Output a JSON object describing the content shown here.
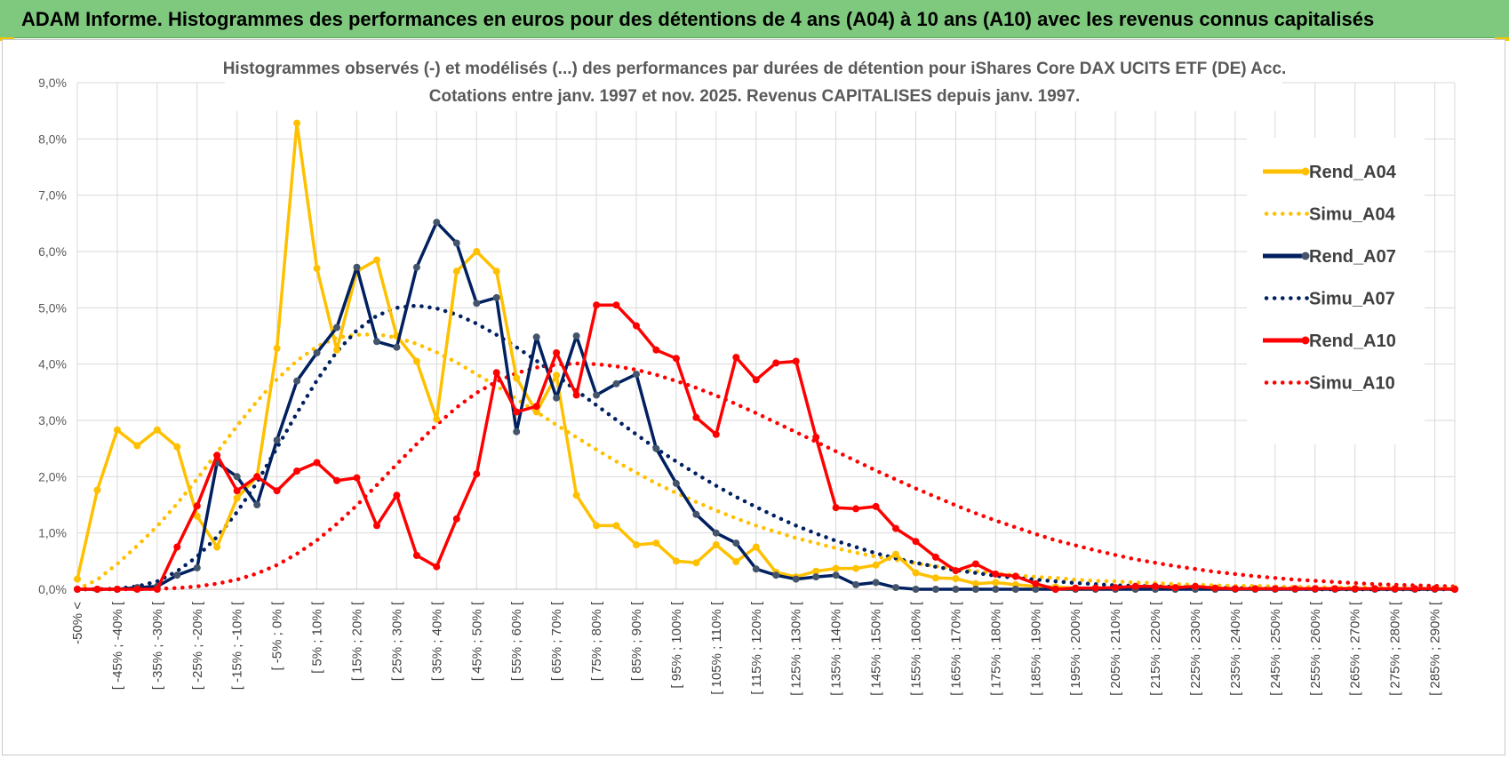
{
  "header": {
    "title": "ADAM Informe. Histogrammes des performances en euros pour des détentions de 4 ans (A04) à 10 ans (A10) avec les revenus connus capitalisés"
  },
  "colors": {
    "header_bg": "#7fc97f",
    "a04": "#ffc000",
    "a07": "#002060",
    "a10": "#ff0000"
  },
  "chart_data": {
    "type": "line",
    "title": "Histogrammes observés (-) et modélisés (...) des performances par durées de détention pour iShares Core DAX UCITS ETF (DE) Acc.",
    "subtitle": "Cotations entre janv. 1997 et nov. 2025. Revenus CAPITALISES depuis janv. 1997.",
    "ylim": [
      0,
      9
    ],
    "yticks": [
      "0,0%",
      "1,0%",
      "2,0%",
      "3,0%",
      "4,0%",
      "5,0%",
      "6,0%",
      "7,0%",
      "8,0%",
      "9,0%"
    ],
    "xlabels": [
      "-50% <",
      "[ -45% ; -40% [",
      "[ -35% ; -30% [",
      "[ -25% ; -20% [",
      "[ -15% ; -10% [",
      "[ -5% ; 0% [",
      "[ 5% ; 10% [",
      "[ 15% ; 20% [",
      "[ 25% ; 30% [",
      "[ 35% ; 40% [",
      "[ 45% ; 50% [",
      "[ 55% ; 60% [",
      "[ 65% ; 70% [",
      "[ 75% ; 80% [",
      "[ 85% ; 90% [",
      "[ 95% ; 100% [",
      "[ 105% ; 110% [",
      "[ 115% ; 120% [",
      "[ 125% ; 130% [",
      "[ 135% ; 140% [",
      "[ 145% ; 150% [",
      "[ 155% ; 160% [",
      "[ 165% ; 170% [",
      "[ 175% ; 180% [",
      "[ 185% ; 190% [",
      "[ 195% ; 200% [",
      "[ 205% ; 210% [",
      "[ 215% ; 220% [",
      "[ 225% ; 230% [",
      "[ 235% ; 240% [",
      "[ 245% ; 250% [",
      "[ 255% ; 260% [",
      "[ 265% ; 270% [",
      "[ 275% ; 280% [",
      "[ 285% ; 290% ["
    ],
    "n_points": 70,
    "legend_position": "right",
    "series": [
      {
        "name": "Rend_A04",
        "style": "solid",
        "color": "#ffc000",
        "values": [
          0.18,
          1.76,
          2.83,
          2.55,
          2.83,
          2.53,
          1.3,
          0.75,
          1.62,
          2.0,
          4.28,
          8.28,
          5.7,
          4.25,
          5.65,
          5.85,
          4.5,
          4.05,
          3.02,
          5.65,
          6.0,
          5.65,
          3.75,
          3.15,
          3.8,
          1.67,
          1.13,
          1.13,
          0.79,
          0.82,
          0.5,
          0.47,
          0.79,
          0.49,
          0.75,
          0.3,
          0.22,
          0.32,
          0.37,
          0.37,
          0.43,
          0.62,
          0.29,
          0.2,
          0.19,
          0.1,
          0.12,
          0.08,
          0.05,
          0.04,
          0.02,
          0.02,
          0.01,
          0.01,
          0.01,
          0.01,
          0.01,
          0.01,
          0.01,
          0.01,
          0.01,
          0.01,
          0.01,
          0.01,
          0.01,
          0.01,
          0.01,
          0.01,
          0.01,
          0.01
        ]
      },
      {
        "name": "Simu_A04",
        "style": "dotted",
        "color": "#ffc000",
        "values": [
          0.0,
          0.17,
          0.45,
          0.77,
          1.12,
          1.52,
          1.96,
          2.43,
          2.9,
          3.34,
          3.73,
          4.06,
          4.31,
          4.47,
          4.52,
          4.53,
          4.47,
          4.36,
          4.21,
          4.03,
          3.82,
          3.61,
          3.38,
          3.15,
          2.92,
          2.7,
          2.48,
          2.27,
          2.07,
          1.88,
          1.71,
          1.55,
          1.4,
          1.26,
          1.13,
          1.02,
          0.91,
          0.82,
          0.73,
          0.65,
          0.58,
          0.52,
          0.46,
          0.41,
          0.36,
          0.32,
          0.28,
          0.25,
          0.22,
          0.2,
          0.17,
          0.15,
          0.14,
          0.12,
          0.11,
          0.09,
          0.08,
          0.07,
          0.06,
          0.06,
          0.05,
          0.04,
          0.04,
          0.03,
          0.03,
          0.03,
          0.02,
          0.02,
          0.02,
          0.02
        ]
      },
      {
        "name": "Rend_A07",
        "style": "solid",
        "color": "#002060",
        "values": [
          0.0,
          0.0,
          0.0,
          0.03,
          0.05,
          0.25,
          0.38,
          2.25,
          2.0,
          1.5,
          2.65,
          3.7,
          4.2,
          4.65,
          5.72,
          4.4,
          4.3,
          5.72,
          6.52,
          6.15,
          5.08,
          5.18,
          2.8,
          4.48,
          3.4,
          4.5,
          3.45,
          3.65,
          3.82,
          2.5,
          1.88,
          1.33,
          1.0,
          0.82,
          0.36,
          0.25,
          0.18,
          0.22,
          0.25,
          0.08,
          0.12,
          0.03,
          0.0,
          0.0,
          0.0,
          0.0,
          0.0,
          0.0,
          0.0,
          0.0,
          0.0,
          0.0,
          0.0,
          0.0,
          0.0,
          0.0,
          0.0,
          0.0,
          0.0,
          0.0,
          0.0,
          0.0,
          0.0,
          0.0,
          0.0,
          0.0,
          0.0,
          0.0,
          0.0,
          0.0
        ]
      },
      {
        "name": "Simu_A07",
        "style": "dotted",
        "color": "#002060",
        "values": [
          0.0,
          0.0,
          0.01,
          0.05,
          0.14,
          0.32,
          0.58,
          0.93,
          1.37,
          1.9,
          2.51,
          3.13,
          3.71,
          4.22,
          4.6,
          4.86,
          5.0,
          5.04,
          4.99,
          4.88,
          4.72,
          4.52,
          4.3,
          4.06,
          3.8,
          3.53,
          3.27,
          3.01,
          2.75,
          2.5,
          2.27,
          2.05,
          1.84,
          1.64,
          1.46,
          1.29,
          1.13,
          0.99,
          0.86,
          0.75,
          0.64,
          0.55,
          0.47,
          0.4,
          0.34,
          0.29,
          0.24,
          0.2,
          0.17,
          0.14,
          0.11,
          0.09,
          0.07,
          0.06,
          0.05,
          0.04,
          0.03,
          0.02,
          0.02,
          0.01,
          0.01,
          0.01,
          0.0,
          0.0,
          0.0,
          0.0,
          0.0,
          0.0,
          0.0,
          0.0
        ]
      },
      {
        "name": "Rend_A10",
        "style": "solid",
        "color": "#ff0000",
        "values": [
          0.0,
          0.0,
          0.0,
          0.0,
          0.0,
          0.75,
          1.48,
          2.38,
          1.75,
          2.0,
          1.75,
          2.1,
          2.25,
          1.93,
          1.98,
          1.13,
          1.67,
          0.6,
          0.4,
          1.25,
          2.05,
          3.85,
          3.15,
          3.25,
          4.2,
          3.45,
          5.05,
          5.05,
          4.68,
          4.25,
          4.1,
          3.05,
          2.75,
          4.12,
          3.72,
          4.02,
          4.05,
          2.7,
          1.45,
          1.43,
          1.47,
          1.08,
          0.85,
          0.57,
          0.33,
          0.45,
          0.27,
          0.23,
          0.1,
          0.0,
          0.02,
          0.02,
          0.03,
          0.05,
          0.05,
          0.03,
          0.05,
          0.02,
          0.01,
          0.01,
          0.01,
          0.01,
          0.01,
          0.01,
          0.01,
          0.01,
          0.01,
          0.01,
          0.01,
          0.0
        ]
      },
      {
        "name": "Simu_A10",
        "style": "dotted",
        "color": "#ff0000",
        "values": [
          0.0,
          0.0,
          0.0,
          0.0,
          0.01,
          0.02,
          0.05,
          0.1,
          0.17,
          0.28,
          0.43,
          0.63,
          0.87,
          1.16,
          1.49,
          1.85,
          2.22,
          2.58,
          2.92,
          3.23,
          3.49,
          3.69,
          3.84,
          3.94,
          3.99,
          4.01,
          4.0,
          3.96,
          3.9,
          3.81,
          3.7,
          3.58,
          3.44,
          3.29,
          3.13,
          2.96,
          2.79,
          2.62,
          2.45,
          2.28,
          2.11,
          1.95,
          1.79,
          1.64,
          1.49,
          1.35,
          1.22,
          1.1,
          0.98,
          0.87,
          0.78,
          0.69,
          0.61,
          0.53,
          0.47,
          0.41,
          0.36,
          0.31,
          0.27,
          0.23,
          0.2,
          0.17,
          0.15,
          0.13,
          0.11,
          0.09,
          0.08,
          0.07,
          0.06,
          0.05
        ]
      }
    ]
  }
}
